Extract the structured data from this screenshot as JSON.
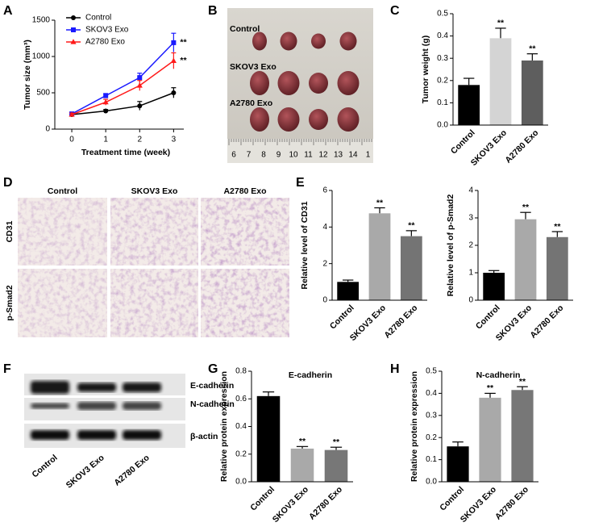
{
  "panel_letters": [
    "A",
    "B",
    "C",
    "D",
    "E",
    "F",
    "G",
    "H"
  ],
  "chart_data": [
    {
      "type": "line",
      "xlabel": "Treatment time (week)",
      "ylabel": "Tumor size (mm³)",
      "x": [
        0,
        1,
        2,
        3
      ],
      "xlim": [
        -0.5,
        3.3
      ],
      "xticks": [
        0,
        1,
        2,
        3
      ],
      "ylim": [
        0,
        1500
      ],
      "yticks": [
        0,
        500,
        1000,
        1500
      ],
      "series": [
        {
          "name": "Control",
          "color": "#000000",
          "marker": "circle",
          "values": [
            200,
            250,
            320,
            500
          ],
          "errors": [
            20,
            20,
            60,
            70
          ],
          "annotations": [
            null,
            null,
            null,
            null
          ]
        },
        {
          "name": "SKOV3 Exo",
          "color": "#1a1aff",
          "marker": "square",
          "values": [
            210,
            460,
            710,
            1190
          ],
          "errors": [
            20,
            30,
            60,
            130
          ],
          "annotations": [
            null,
            null,
            null,
            "**"
          ]
        },
        {
          "name": "A2780 Exo",
          "color": "#ff1a1a",
          "marker": "triangle",
          "values": [
            200,
            370,
            600,
            940
          ],
          "errors": [
            20,
            40,
            70,
            110
          ],
          "annotations": [
            null,
            null,
            null,
            "**"
          ]
        }
      ]
    },
    {
      "type": "bar",
      "ylabel": "Tumor weight (g)",
      "categories": [
        "Control",
        "SKOV3 Exo",
        "A2780 Exo"
      ],
      "values": [
        0.18,
        0.39,
        0.29
      ],
      "errors": [
        0.03,
        0.045,
        0.03
      ],
      "annotations": [
        null,
        "**",
        "**"
      ],
      "colors": [
        "#000000",
        "#d4d4d4",
        "#5e5e5e"
      ],
      "ylim": [
        0,
        0.5
      ],
      "yticks": [
        {
          "value": 0,
          "label": "0.0"
        },
        0.1,
        0.2,
        0.3,
        0.4,
        0.5
      ]
    },
    {
      "type": "bar",
      "ylabel": "Relative level of CD31",
      "categories": [
        "Control",
        "SKOV3 Exo",
        "A2780 Exo"
      ],
      "values": [
        1,
        4.75,
        3.5
      ],
      "errors": [
        0.1,
        0.3,
        0.3
      ],
      "annotations": [
        null,
        "**",
        "**"
      ],
      "colors": [
        "#000000",
        "#a9a9a9",
        "#747474"
      ],
      "ylim": [
        0,
        6
      ],
      "yticks": [
        0,
        2,
        4,
        6
      ]
    },
    {
      "type": "bar",
      "ylabel": "Relative level of p-Smad2",
      "categories": [
        "Control",
        "SKOV3 Exo",
        "A2780 Exo"
      ],
      "values": [
        1,
        2.95,
        2.3
      ],
      "errors": [
        0.08,
        0.25,
        0.2
      ],
      "annotations": [
        null,
        "**",
        "**"
      ],
      "colors": [
        "#000000",
        "#a9a9a9",
        "#747474"
      ],
      "ylim": [
        0,
        4
      ],
      "yticks": [
        0,
        1,
        2,
        3,
        4
      ]
    },
    {
      "type": "bar",
      "title": "E-cadherin",
      "ylabel": "Relative protein expression",
      "categories": [
        "Control",
        "SKOV3 Exo",
        "A2780 Exo"
      ],
      "values": [
        0.62,
        0.24,
        0.23
      ],
      "errors": [
        0.03,
        0.015,
        0.02
      ],
      "annotations": [
        null,
        "**",
        "**"
      ],
      "colors": [
        "#000000",
        "#a9a9a9",
        "#777777"
      ],
      "ylim": [
        0,
        0.8
      ],
      "yticks": [
        {
          "value": 0,
          "label": "0.0"
        },
        0.2,
        0.4,
        0.6,
        0.8
      ]
    },
    {
      "type": "bar",
      "title": "N-cadherin",
      "ylabel": "Relative protein expression",
      "categories": [
        "Control",
        "SKOV3 Exo",
        "A2780 Exo"
      ],
      "values": [
        0.16,
        0.38,
        0.415
      ],
      "errors": [
        0.02,
        0.02,
        0.015
      ],
      "annotations": [
        null,
        "**",
        "**"
      ],
      "colors": [
        "#000000",
        "#a9a9a9",
        "#777777"
      ],
      "ylim": [
        0,
        0.5
      ],
      "yticks": [
        {
          "value": 0,
          "label": "0.0"
        },
        0.1,
        0.2,
        0.3,
        0.4,
        0.5
      ]
    }
  ],
  "photos": {
    "B": {
      "rows": [
        "Control",
        "SKOV3 Exo",
        "A2780 Exo"
      ],
      "ruler": [
        "6",
        "7",
        "8",
        "9",
        "10",
        "11",
        "12",
        "13",
        "14",
        "1"
      ]
    },
    "D": {
      "columns": [
        "Control",
        "SKOV3 Exo",
        "A2780 Exo"
      ],
      "rows": [
        "CD31",
        "p-Smad2"
      ]
    },
    "F": {
      "bands": [
        "E-cadherin",
        "N-cadherin",
        "β-actin"
      ],
      "lanes": [
        "Control",
        "SKOV3 Exo",
        "A2780 Exo"
      ]
    }
  }
}
